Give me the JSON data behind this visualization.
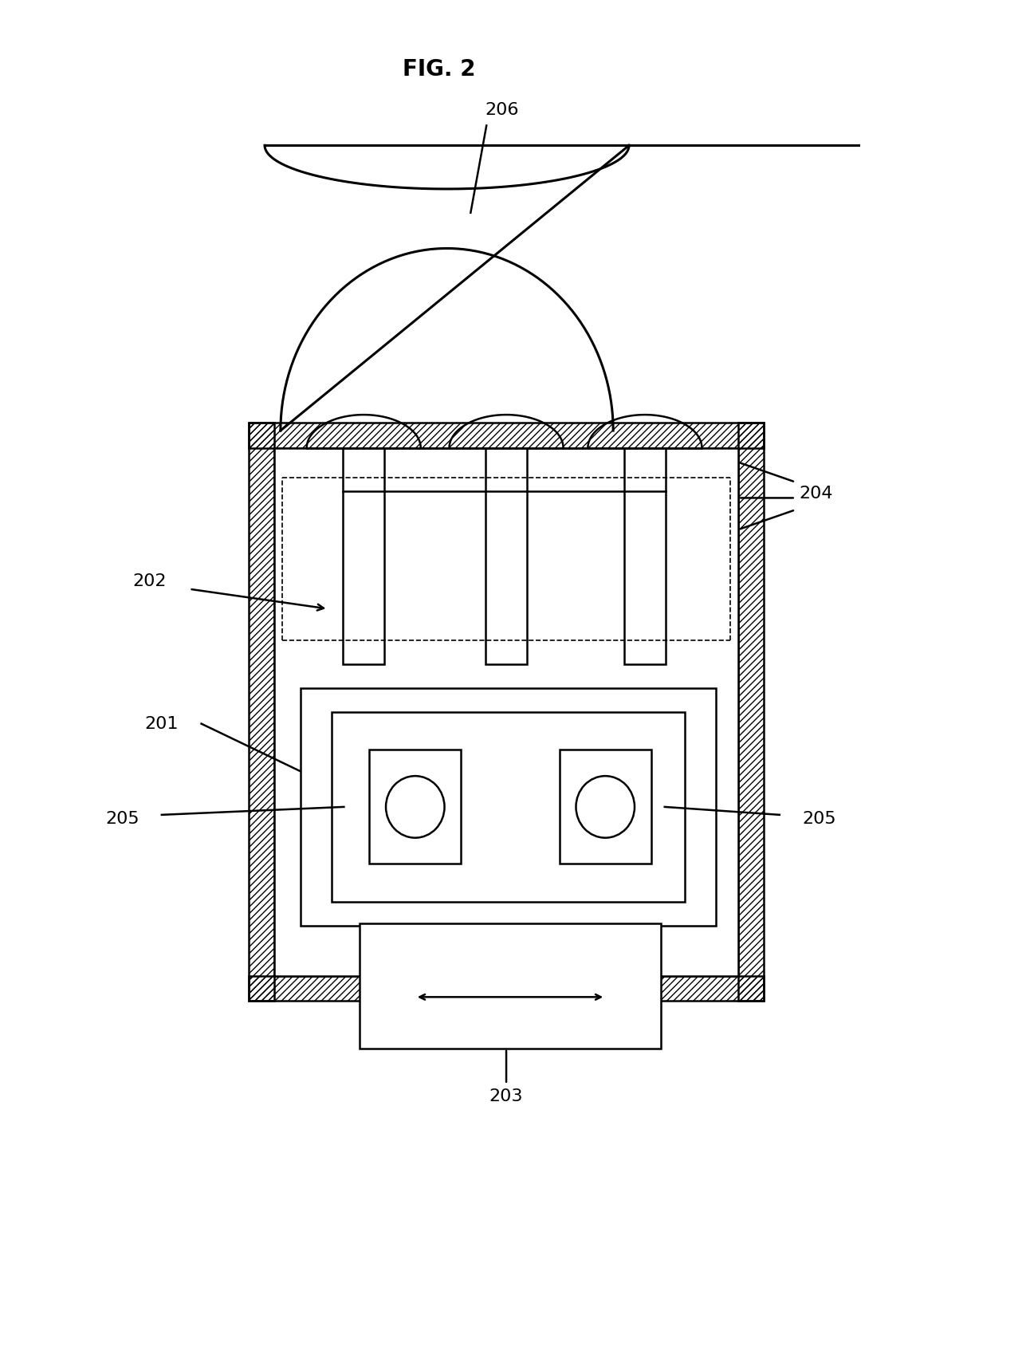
{
  "title": "FIG. 2",
  "bg_color": "#ffffff",
  "label_206": "206",
  "label_204": "204",
  "label_202": "202",
  "label_201": "201",
  "label_205_l": "205",
  "label_205_r": "205",
  "label_203": "203",
  "title_fontsize": 20,
  "label_fontsize": 16
}
